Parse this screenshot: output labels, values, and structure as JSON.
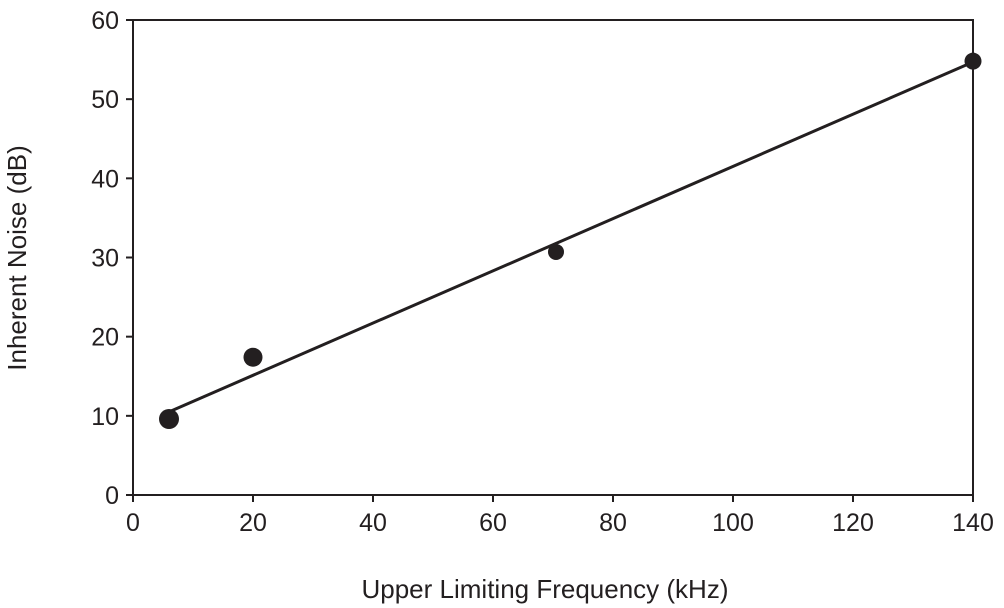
{
  "chart_data": {
    "type": "scatter",
    "title": "",
    "xlabel": "Upper Limiting Frequency (kHz)",
    "ylabel": "Inherent Noise (dB)",
    "xlim": [
      0,
      140
    ],
    "ylim": [
      0,
      60
    ],
    "xticks": [
      0,
      20,
      40,
      60,
      80,
      100,
      120,
      140
    ],
    "yticks": [
      0,
      10,
      20,
      30,
      40,
      50,
      60
    ],
    "grid": false,
    "legend": "none",
    "points": [
      {
        "x": 6,
        "y": 9.6
      },
      {
        "x": 20,
        "y": 17.4
      },
      {
        "x": 70.5,
        "y": 30.7
      },
      {
        "x": 140,
        "y": 54.8
      }
    ],
    "fit_line": {
      "x": [
        6,
        140
      ],
      "y": [
        10.5,
        54.7
      ]
    },
    "colors": {
      "marker": "#231f20",
      "line": "#231f20",
      "axis": "#231f20"
    }
  }
}
